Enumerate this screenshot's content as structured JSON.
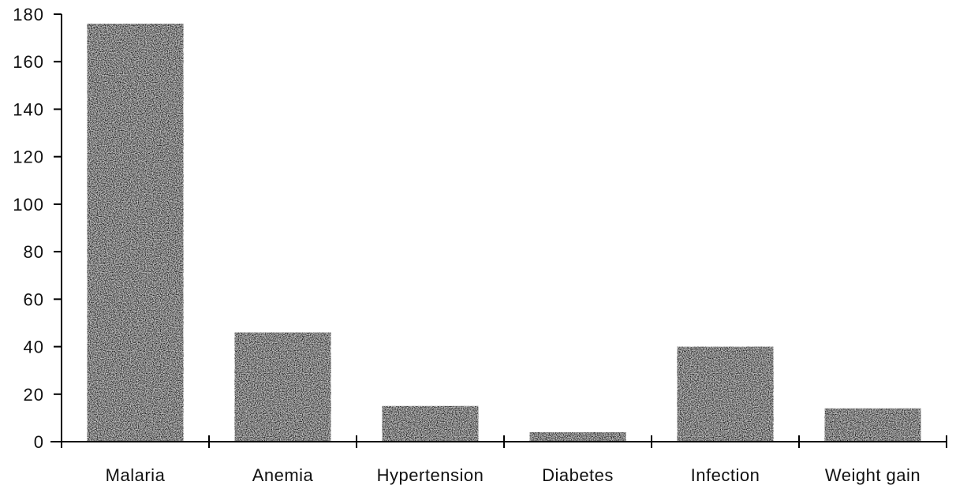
{
  "chart_data": {
    "type": "bar",
    "title": "",
    "xlabel": "",
    "ylabel": "",
    "categories": [
      "Malaria",
      "Anemia",
      "Hypertension",
      "Diabetes",
      "Infection",
      "Weight gain"
    ],
    "values": [
      176,
      46,
      15,
      4,
      40,
      14
    ],
    "ylim": [
      0,
      180
    ],
    "yticks": [
      0,
      20,
      40,
      60,
      80,
      100,
      120,
      140,
      160,
      180
    ],
    "ytick_labels": [
      "0",
      "20",
      "40",
      "60",
      "80",
      "100",
      "120",
      "140",
      "160",
      "180"
    ],
    "grid": false,
    "legend": "none",
    "colors": {
      "bar_fill": "#1a1a1a",
      "bar_speckle": "#ffffff",
      "axis": "#000000"
    }
  }
}
